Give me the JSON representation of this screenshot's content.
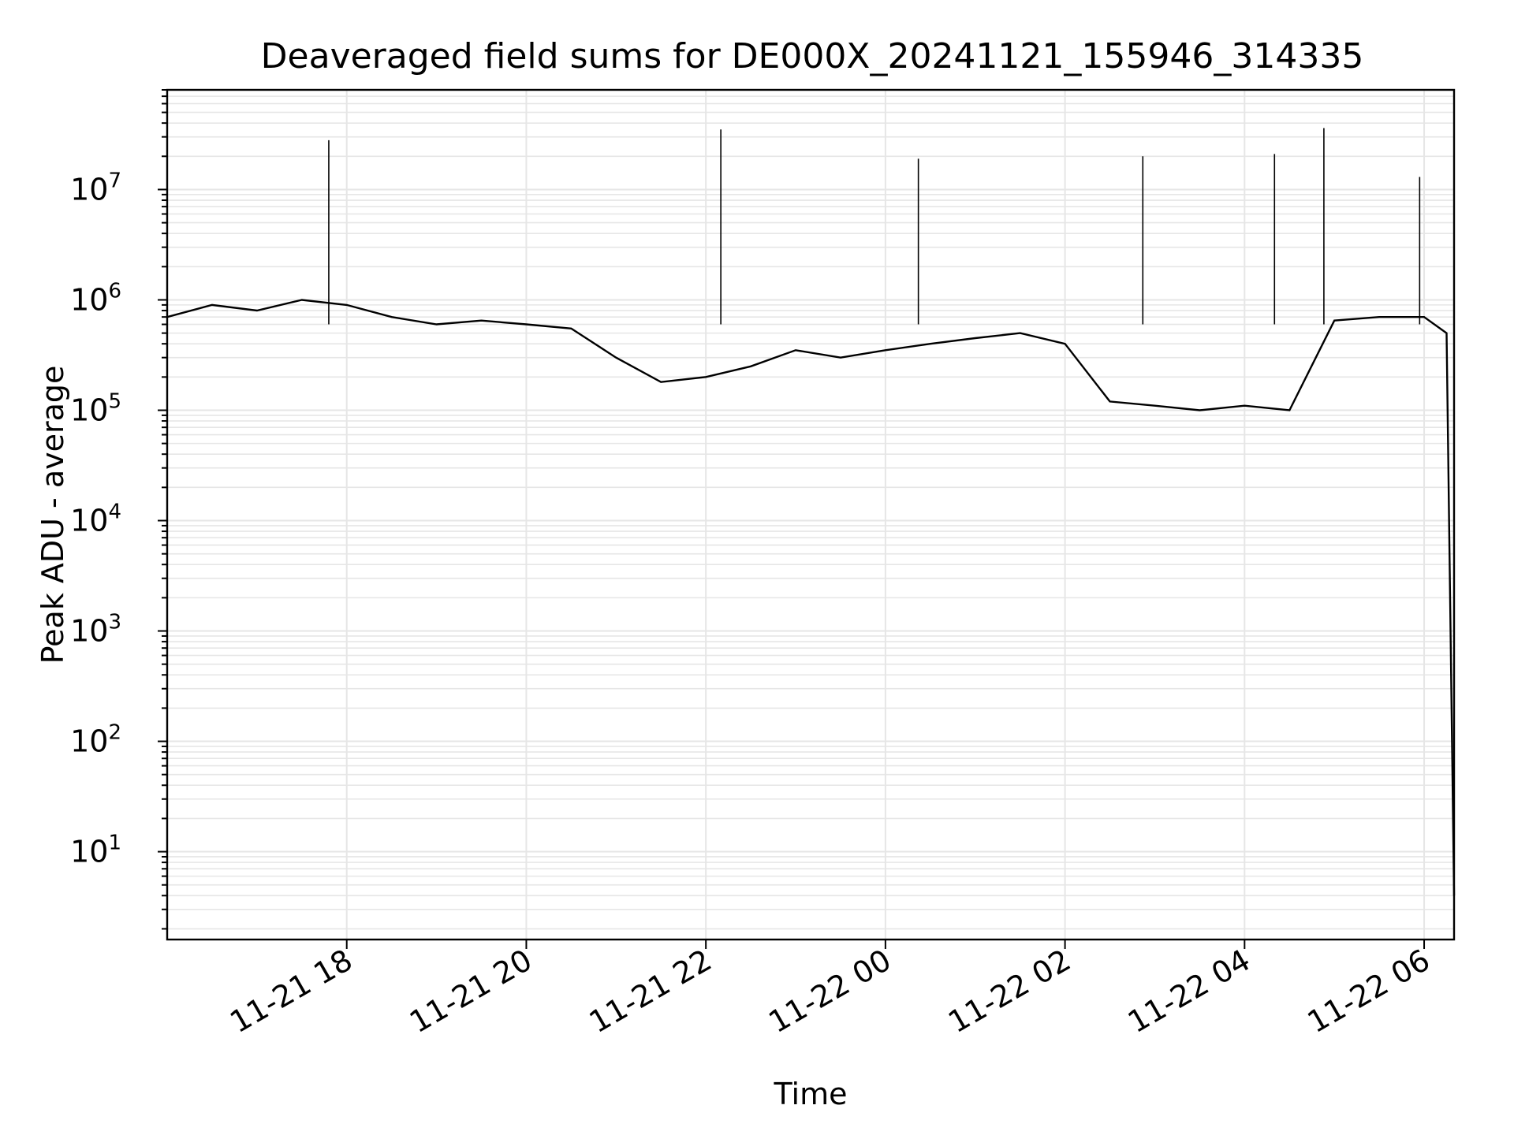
{
  "chart_data": {
    "type": "line",
    "title": "Deaveraged field sums for DE000X_20241121_155946_314335",
    "xlabel": "Time",
    "ylabel": "Peak ADU - average",
    "yscale": "log",
    "ylim": [
      1.6,
      80000000
    ],
    "xlim": [
      "2024-11-21T16:00",
      "2024-11-22T06:20"
    ],
    "xticks": [
      "11-21 18",
      "11-21 20",
      "11-21 22",
      "11-22 00",
      "11-22 02",
      "11-22 04",
      "11-22 06"
    ],
    "xtick_values": [
      "2024-11-21T18:00",
      "2024-11-21T20:00",
      "2024-11-21T22:00",
      "2024-11-22T00:00",
      "2024-11-22T02:00",
      "2024-11-22T04:00",
      "2024-11-22T06:00"
    ],
    "yticks": [
      {
        "base": "10",
        "exp": "1",
        "value": 10
      },
      {
        "base": "10",
        "exp": "2",
        "value": 100
      },
      {
        "base": "10",
        "exp": "3",
        "value": 1000
      },
      {
        "base": "10",
        "exp": "4",
        "value": 10000
      },
      {
        "base": "10",
        "exp": "5",
        "value": 100000
      },
      {
        "base": "10",
        "exp": "6",
        "value": 1000000
      },
      {
        "base": "10",
        "exp": "7",
        "value": 10000000
      }
    ],
    "grid": true,
    "line_color": "#000000",
    "grid_color": "#e6e6e6",
    "series": [
      {
        "x": [
          "2024-11-21T16:00",
          "2024-11-21T16:30",
          "2024-11-21T17:00",
          "2024-11-21T17:30",
          "2024-11-21T18:00",
          "2024-11-21T18:30",
          "2024-11-21T19:00",
          "2024-11-21T19:30",
          "2024-11-21T20:00",
          "2024-11-21T20:30",
          "2024-11-21T21:00",
          "2024-11-21T21:30",
          "2024-11-21T22:00",
          "2024-11-21T22:30",
          "2024-11-21T23:00",
          "2024-11-21T23:30",
          "2024-11-22T00:00",
          "2024-11-22T00:30",
          "2024-11-22T01:00",
          "2024-11-22T01:30",
          "2024-11-22T02:00",
          "2024-11-22T02:30",
          "2024-11-22T03:00",
          "2024-11-22T03:30",
          "2024-11-22T04:00",
          "2024-11-22T04:30",
          "2024-11-22T05:00",
          "2024-11-22T05:30",
          "2024-11-22T06:00",
          "2024-11-22T06:15",
          "2024-11-22T06:20"
        ],
        "values": [
          700000,
          900000,
          800000,
          1000000,
          900000,
          700000,
          600000,
          650000,
          600000,
          550000,
          300000,
          180000,
          200000,
          250000,
          350000,
          300000,
          350000,
          400000,
          450000,
          500000,
          400000,
          120000,
          110000,
          100000,
          110000,
          100000,
          650000,
          700000,
          700000,
          500000,
          4
        ]
      }
    ],
    "spikes": [
      {
        "x": "2024-11-21T17:48",
        "y": 28000000
      },
      {
        "x": "2024-11-21T22:10",
        "y": 35000000
      },
      {
        "x": "2024-11-22T00:22",
        "y": 19000000
      },
      {
        "x": "2024-11-22T02:52",
        "y": 20000000
      },
      {
        "x": "2024-11-22T04:20",
        "y": 21000000
      },
      {
        "x": "2024-11-22T04:53",
        "y": 36000000
      },
      {
        "x": "2024-11-22T05:57",
        "y": 13000000
      }
    ]
  }
}
